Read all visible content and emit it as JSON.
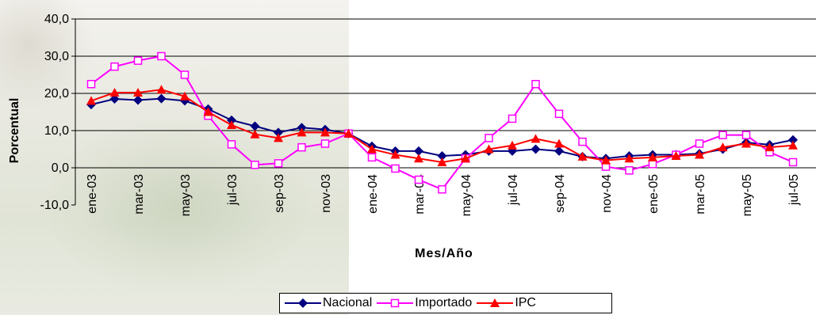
{
  "chart_data": {
    "type": "line",
    "xlabel": "Mes/Año",
    "ylabel": "Porcentual",
    "ylim": [
      -10,
      40
    ],
    "y_ticks": [
      "-10,0",
      "0,0",
      "10,0",
      "20,0",
      "30,0",
      "40,0"
    ],
    "x_tick_labels": [
      "ene-03",
      "mar-03",
      "may-03",
      "jul-03",
      "sep-03",
      "nov-03",
      "ene-04",
      "mar-04",
      "may-04",
      "jul-04",
      "sep-04",
      "nov-04",
      "ene-05",
      "mar-05",
      "may-05",
      "jul-05"
    ],
    "x": [
      "ene-03",
      "feb-03",
      "mar-03",
      "abr-03",
      "may-03",
      "jun-03",
      "jul-03",
      "ago-03",
      "sep-03",
      "oct-03",
      "nov-03",
      "dic-03",
      "ene-04",
      "feb-04",
      "mar-04",
      "abr-04",
      "may-04",
      "jun-04",
      "jul-04",
      "ago-04",
      "sep-04",
      "oct-04",
      "nov-04",
      "dic-04",
      "ene-05",
      "feb-05",
      "mar-05",
      "abr-05",
      "may-05",
      "jun-05",
      "jul-05"
    ],
    "grid": "horizontal",
    "legend_position": "bottom",
    "series": [
      {
        "name": "Nacional",
        "color": "#000080",
        "marker": "diamond",
        "values": [
          17.0,
          18.5,
          18.2,
          18.6,
          18.0,
          15.8,
          12.8,
          11.2,
          9.5,
          10.8,
          10.3,
          9.2,
          5.8,
          4.5,
          4.5,
          3.2,
          3.5,
          4.5,
          4.5,
          5.0,
          4.5,
          3.0,
          2.5,
          3.2,
          3.5,
          3.5,
          3.8,
          5.0,
          6.8,
          6.2,
          7.5
        ]
      },
      {
        "name": "Importado",
        "color": "#FF00FF",
        "marker": "square",
        "values": [
          22.5,
          27.2,
          28.8,
          30.0,
          25.0,
          14.0,
          6.3,
          0.8,
          1.2,
          5.5,
          6.5,
          9.2,
          2.8,
          -0.2,
          -3.2,
          -5.8,
          2.5,
          8.0,
          13.2,
          22.5,
          14.5,
          7.0,
          0.3,
          -0.7,
          1.0,
          3.5,
          6.5,
          8.8,
          8.8,
          4.2,
          1.5
        ]
      },
      {
        "name": "IPC",
        "color": "#FF0000",
        "marker": "triangle",
        "values": [
          18.0,
          20.2,
          20.2,
          21.0,
          19.2,
          15.0,
          11.5,
          9.0,
          8.0,
          9.5,
          9.5,
          9.2,
          5.0,
          3.5,
          2.5,
          1.5,
          2.5,
          5.0,
          6.0,
          7.8,
          6.5,
          3.0,
          2.0,
          2.5,
          2.8,
          3.2,
          3.5,
          5.5,
          6.5,
          5.5,
          6.0
        ]
      }
    ]
  }
}
